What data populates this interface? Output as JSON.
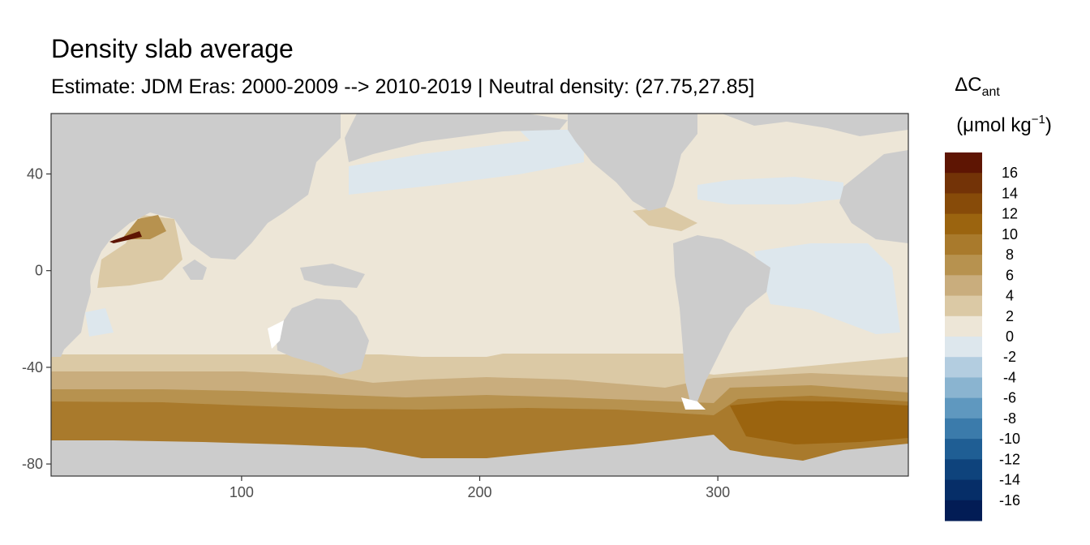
{
  "chart_data": {
    "type": "heatmap",
    "title": "Density slab average",
    "subtitle": "Estimate: JDM Eras: 2000-2009 --> 2010-2019 | Neutral density: (27.75,27.85]",
    "xlabel": "",
    "ylabel": "",
    "xlim": [
      20,
      380
    ],
    "ylim": [
      -85,
      65
    ],
    "x_ticks": [
      100,
      200,
      300
    ],
    "y_ticks": [
      40,
      0,
      -40,
      -80
    ],
    "grid": false,
    "legend": {
      "position": "right",
      "title_main": "ΔC",
      "title_sub": "ant",
      "units_pre": "(μmol kg",
      "units_sup": "−1",
      "units_post": ")",
      "breaks": [
        16,
        14,
        12,
        10,
        8,
        6,
        4,
        2,
        0,
        -2,
        -4,
        -6,
        -8,
        -10,
        -12,
        -14,
        -16
      ],
      "colors": [
        "#5e1503",
        "#733307",
        "#874b09",
        "#9b640f",
        "#a97a2c",
        "#b7924f",
        "#c9ad7d",
        "#dbc9a5",
        "#ede6d7",
        "#dde7ed",
        "#b3cde0",
        "#8ab4d0",
        "#5f98bf",
        "#3b7bab",
        "#1f5e94",
        "#0e437c",
        "#062e68",
        "#021c55"
      ]
    },
    "colors": {
      "land": "#cccccc",
      "ocean_near_zero": "#ede6d7",
      "ocean_slightly_negative": "#dde7ed",
      "southern_ocean_band": "#a97a2c"
    },
    "annotations": []
  }
}
